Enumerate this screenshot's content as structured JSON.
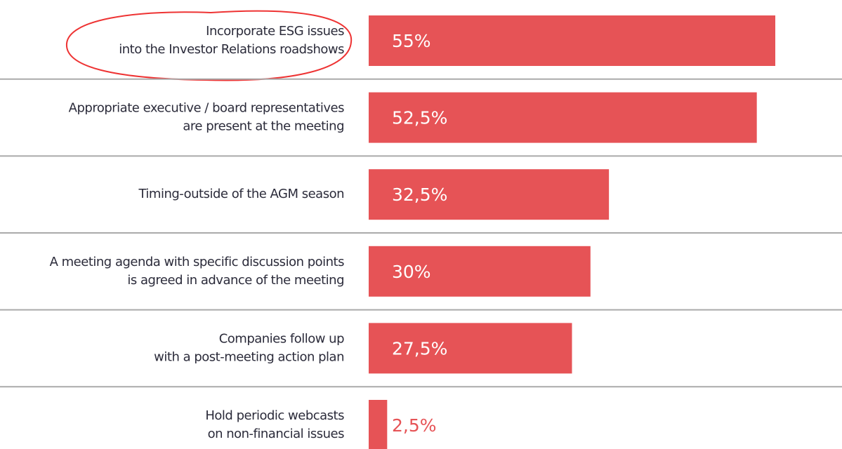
{
  "chart_data": {
    "type": "bar",
    "orientation": "horizontal",
    "categories": [
      [
        "Incorporate ESG issues",
        "into the Investor Relations roadshows"
      ],
      [
        "Appropriate executive / board representatives",
        "are present at the meeting"
      ],
      [
        "Timing-outside of the AGM season"
      ],
      [
        "A meeting agenda with specific discussion points",
        "is agreed in advance of the meeting"
      ],
      [
        "Companies follow up",
        "with a post-meeting action plan"
      ],
      [
        "Hold periodic webcasts",
        "on non-financial issues"
      ]
    ],
    "values": [
      55,
      52.5,
      32.5,
      30,
      27.5,
      2.5
    ],
    "value_labels": [
      "55%",
      "52,5%",
      "32,5%",
      "30%",
      "27,5%",
      "2,5%"
    ],
    "color": "#e65356"
  }
}
